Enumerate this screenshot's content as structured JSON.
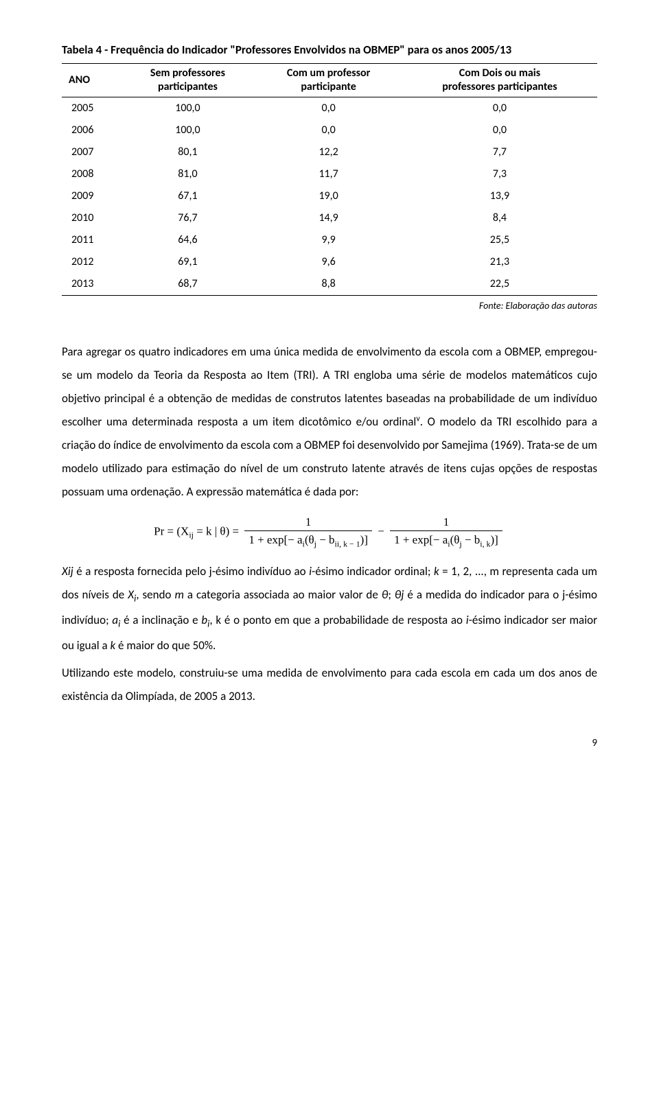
{
  "table": {
    "title": "Tabela 4 - Frequência do Indicador \"Professores Envolvidos na OBMEP\" para os anos 2005/13",
    "headers": {
      "col0": "ANO",
      "col1_l1": "Sem professores",
      "col1_l2": "participantes",
      "col2_l1": "Com um professor",
      "col2_l2": "participante",
      "col3_l1": "Com Dois ou mais",
      "col3_l2": "professores participantes"
    },
    "rows": [
      {
        "y": "2005",
        "a": "100,0",
        "b": "0,0",
        "c": "0,0"
      },
      {
        "y": "2006",
        "a": "100,0",
        "b": "0,0",
        "c": "0,0"
      },
      {
        "y": "2007",
        "a": "80,1",
        "b": "12,2",
        "c": "7,7"
      },
      {
        "y": "2008",
        "a": "81,0",
        "b": "11,7",
        "c": "7,3"
      },
      {
        "y": "2009",
        "a": "67,1",
        "b": "19,0",
        "c": "13,9"
      },
      {
        "y": "2010",
        "a": "76,7",
        "b": "14,9",
        "c": "8,4"
      },
      {
        "y": "2011",
        "a": "64,6",
        "b": "9,9",
        "c": "25,5"
      },
      {
        "y": "2012",
        "a": "69,1",
        "b": "9,6",
        "c": "21,3"
      },
      {
        "y": "2013",
        "a": "68,7",
        "b": "8,8",
        "c": "22,5"
      }
    ],
    "source": "Fonte: Elaboração das autoras"
  },
  "paragraphs": {
    "p1a": "Para agregar os quatro indicadores em uma única medida de envolvimento da escola com a OBMEP, empregou-se um modelo da Teoria da Resposta ao Item (TRI). A TRI engloba uma série de modelos matemáticos cujo objetivo principal é a obtenção de medidas de construtos latentes baseadas na probabilidade de um indivíduo escolher uma determinada resposta a um item dicotômico e/ou ordinal",
    "p1b": ". O modelo da TRI escolhido para a criação do índice de envolvimento da escola com a OBMEP foi desenvolvido por Samejima (1969). Trata-se de um modelo utilizado para estimação do nível de um construto latente através de itens cujas opções de respostas possuam uma ordenação. A expressão matemática é dada por:",
    "note": "v",
    "p2_pre": "Xij",
    "p2a": " é a resposta fornecida pelo j-ésimo indivíduo ao ",
    "p2b": "i",
    "p2c": "-ésimo indicador ordinal; ",
    "p2d": "k",
    "p2e": " = 1, 2, ..., m representa cada um dos níveis de ",
    "p2f": "X",
    "p2g": "i",
    "p2h": ", sendo ",
    "p2i": "m",
    "p2j": " a categoria associada ao maior valor de ",
    "p2k": "θ",
    "p2l": "; ",
    "p2m": "θj",
    "p2n": " é a medida do indicador para o j-ésimo indivíduo; ",
    "p2o": "a",
    "p2p": "i",
    "p2q": " é a inclinação e ",
    "p2r": "b",
    "p2s": "i",
    "p2t": ", k é o ponto em que a probabilidade de resposta ao ",
    "p2u": "i",
    "p2v": "-ésimo indicador ser maior ou igual a ",
    "p2w": "k",
    "p2x": " é maior do que 50%.",
    "p3": "Utilizando este modelo, construiu-se uma medida de envolvimento para cada escola em cada um dos anos de existência da Olimpíada, de 2005 a 2013."
  },
  "formula": {
    "lhs": "Pr = (X",
    "lhs_sub": "ij",
    "lhs2": " = k | θ) =",
    "f1_num": "1",
    "f1_den_a": "1 + exp[− a",
    "f1_den_b": "i",
    "f1_den_c": "(θ",
    "f1_den_d": "j",
    "f1_den_e": " − b",
    "f1_den_f": "ii, k − 1",
    "f1_den_g": ")]",
    "minus": " − ",
    "f2_num": "1",
    "f2_den_a": "1 + exp[− a",
    "f2_den_b": "i",
    "f2_den_c": "(θ",
    "f2_den_d": "j",
    "f2_den_e": " − b",
    "f2_den_f": "i, k",
    "f2_den_g": ")]"
  },
  "page_number": "9"
}
